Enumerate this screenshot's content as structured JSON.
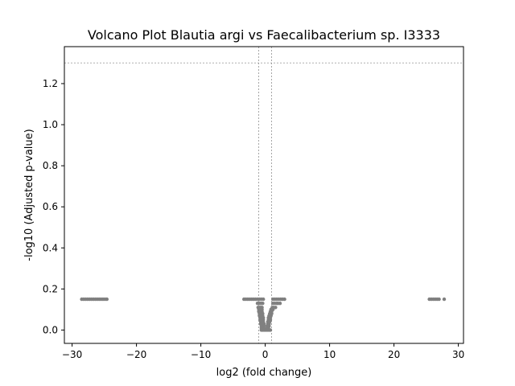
{
  "chart_data": {
    "type": "scatter",
    "title": "Volcano Plot Blautia argi vs Faecalibacterium sp. I3333",
    "xlabel": "log2 (fold change)",
    "ylabel": "-log10 (Adjusted p-value)",
    "xlim": [
      -31.2,
      30.8
    ],
    "ylim": [
      -0.065,
      1.38
    ],
    "xticks": [
      -30,
      -20,
      -10,
      0,
      10,
      20,
      30
    ],
    "xtick_labels": [
      "−30",
      "−20",
      "−10",
      "0",
      "10",
      "20",
      "30"
    ],
    "yticks": [
      0.0,
      0.2,
      0.4,
      0.6,
      0.8,
      1.0,
      1.2
    ],
    "ytick_labels": [
      "0.0",
      "0.2",
      "0.4",
      "0.6",
      "0.8",
      "1.0",
      "1.2"
    ],
    "grid": false,
    "legend": "none",
    "reference_lines": {
      "x": [
        -1,
        1
      ],
      "y": [
        1.301
      ]
    },
    "colors": {
      "points": "#808080",
      "reference_lines": "#808080",
      "axes": "#000000"
    },
    "series": [
      {
        "color": "#808080",
        "points": [
          [
            -28.5,
            0.15
          ],
          [
            -28.2,
            0.15
          ],
          [
            -27.9,
            0.15
          ],
          [
            -27.6,
            0.15
          ],
          [
            -27.3,
            0.15
          ],
          [
            -27.0,
            0.15
          ],
          [
            -26.7,
            0.15
          ],
          [
            -26.4,
            0.15
          ],
          [
            -26.1,
            0.15
          ],
          [
            -25.8,
            0.15
          ],
          [
            -25.5,
            0.15
          ],
          [
            -25.2,
            0.15
          ],
          [
            -24.9,
            0.15
          ],
          [
            -24.6,
            0.15
          ],
          [
            -3.3,
            0.15
          ],
          [
            -3.0,
            0.15
          ],
          [
            -2.7,
            0.15
          ],
          [
            -2.4,
            0.15
          ],
          [
            -2.1,
            0.15
          ],
          [
            -1.8,
            0.15
          ],
          [
            -1.5,
            0.15
          ],
          [
            -1.2,
            0.15
          ],
          [
            -0.9,
            0.15
          ],
          [
            -0.6,
            0.15
          ],
          [
            -0.3,
            0.15
          ],
          [
            1.2,
            0.15
          ],
          [
            1.5,
            0.15
          ],
          [
            1.8,
            0.15
          ],
          [
            2.1,
            0.15
          ],
          [
            2.4,
            0.15
          ],
          [
            2.7,
            0.15
          ],
          [
            3.0,
            0.15
          ],
          [
            -0.4,
            0.13
          ],
          [
            -0.6,
            0.13
          ],
          [
            -0.8,
            0.13
          ],
          [
            -1.0,
            0.13
          ],
          [
            -1.2,
            0.13
          ],
          [
            1.2,
            0.13
          ],
          [
            1.5,
            0.13
          ],
          [
            1.8,
            0.13
          ],
          [
            2.0,
            0.13
          ],
          [
            2.3,
            0.13
          ],
          [
            -0.5,
            0.11
          ],
          [
            -0.7,
            0.11
          ],
          [
            -0.9,
            0.11
          ],
          [
            -1.1,
            0.11
          ],
          [
            1.1,
            0.11
          ],
          [
            1.3,
            0.11
          ],
          [
            1.6,
            0.11
          ],
          [
            -0.5,
            0.1
          ],
          [
            -0.8,
            0.1
          ],
          [
            -1.0,
            0.1
          ],
          [
            0.9,
            0.1
          ],
          [
            1.2,
            0.1
          ],
          [
            -0.5,
            0.09
          ],
          [
            -0.8,
            0.09
          ],
          [
            -1.0,
            0.09
          ],
          [
            0.8,
            0.09
          ],
          [
            1.0,
            0.09
          ],
          [
            -0.4,
            0.08
          ],
          [
            -0.6,
            0.08
          ],
          [
            -0.9,
            0.08
          ],
          [
            0.7,
            0.08
          ],
          [
            1.0,
            0.08
          ],
          [
            -0.4,
            0.07
          ],
          [
            -0.7,
            0.07
          ],
          [
            -0.9,
            0.07
          ],
          [
            0.6,
            0.07
          ],
          [
            0.9,
            0.07
          ],
          [
            -0.3,
            0.06
          ],
          [
            -0.6,
            0.06
          ],
          [
            -0.8,
            0.06
          ],
          [
            0.5,
            0.06
          ],
          [
            0.8,
            0.06
          ],
          [
            -0.3,
            0.05
          ],
          [
            -0.6,
            0.05
          ],
          [
            -0.8,
            0.05
          ],
          [
            0.5,
            0.05
          ],
          [
            0.8,
            0.05
          ],
          [
            -0.3,
            0.04
          ],
          [
            -0.5,
            0.04
          ],
          [
            -0.7,
            0.04
          ],
          [
            0.4,
            0.04
          ],
          [
            0.7,
            0.04
          ],
          [
            -0.2,
            0.03
          ],
          [
            -0.5,
            0.03
          ],
          [
            -0.7,
            0.03
          ],
          [
            0.4,
            0.03
          ],
          [
            0.6,
            0.03
          ],
          [
            -0.2,
            0.02
          ],
          [
            -0.4,
            0.02
          ],
          [
            -0.6,
            0.02
          ],
          [
            0.3,
            0.02
          ],
          [
            0.6,
            0.02
          ],
          [
            -0.2,
            0.01
          ],
          [
            -0.4,
            0.01
          ],
          [
            -0.6,
            0.01
          ],
          [
            0.3,
            0.01
          ],
          [
            0.5,
            0.01
          ],
          [
            -0.6,
            0.0
          ],
          [
            -0.4,
            0.0
          ],
          [
            -0.2,
            0.0
          ],
          [
            0.0,
            0.0
          ],
          [
            0.2,
            0.0
          ],
          [
            0.4,
            0.0
          ],
          [
            0.6,
            0.0
          ],
          [
            0.8,
            0.0
          ],
          [
            25.5,
            0.15
          ],
          [
            25.8,
            0.15
          ],
          [
            26.1,
            0.15
          ],
          [
            26.4,
            0.15
          ],
          [
            26.7,
            0.15
          ],
          [
            27.0,
            0.15
          ],
          [
            27.8,
            0.15
          ]
        ]
      }
    ]
  }
}
